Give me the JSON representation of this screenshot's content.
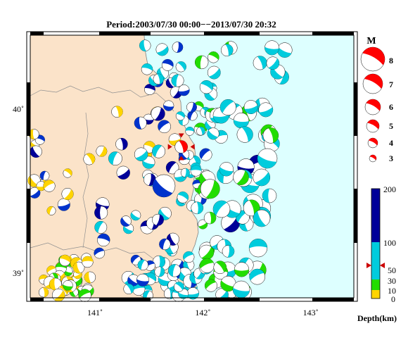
{
  "title": "Period:2003/07/30 00:00−−2013/07/30 20:32",
  "map": {
    "lon_range": [
      140.4,
      143.4
    ],
    "lat_range": [
      38.85,
      40.45
    ],
    "lon_ticks": [
      {
        "value": 141,
        "label": "141˚"
      },
      {
        "value": 142,
        "label": "142˚"
      },
      {
        "value": 143,
        "label": "143˚"
      }
    ],
    "lat_ticks": [
      {
        "value": 39,
        "label": "39˚"
      },
      {
        "value": 40,
        "label": "40˚"
      }
    ],
    "colors": {
      "land": "#fbe3c9",
      "sea": "#ddffff",
      "coast": "#808080",
      "frame": "#000000"
    }
  },
  "magnitude_legend": {
    "title": "M",
    "items": [
      {
        "label": "8",
        "m": 8
      },
      {
        "label": "7",
        "m": 7
      },
      {
        "label": "6",
        "m": 6
      },
      {
        "label": "5",
        "m": 5
      },
      {
        "label": "4",
        "m": 4
      },
      {
        "label": "3",
        "m": 3
      }
    ],
    "color": "#ff0000"
  },
  "depth_scale": {
    "title": "Depth(km)",
    "ticks": [
      "200",
      "100",
      "50",
      "30",
      "10",
      "0"
    ],
    "bands": [
      {
        "from": 0,
        "to": 10,
        "color": "#ffd400"
      },
      {
        "from": 10,
        "to": 30,
        "color": "#22dd00"
      },
      {
        "from": 30,
        "to": 100,
        "color": "#00ccdd"
      },
      {
        "from": 100,
        "to": 200,
        "color": "#000099"
      }
    ],
    "marker_depth": 55
  },
  "highlight_event": {
    "lon": 141.8,
    "lat": 39.77,
    "m": 5.2,
    "color": "#ff0000"
  }
}
